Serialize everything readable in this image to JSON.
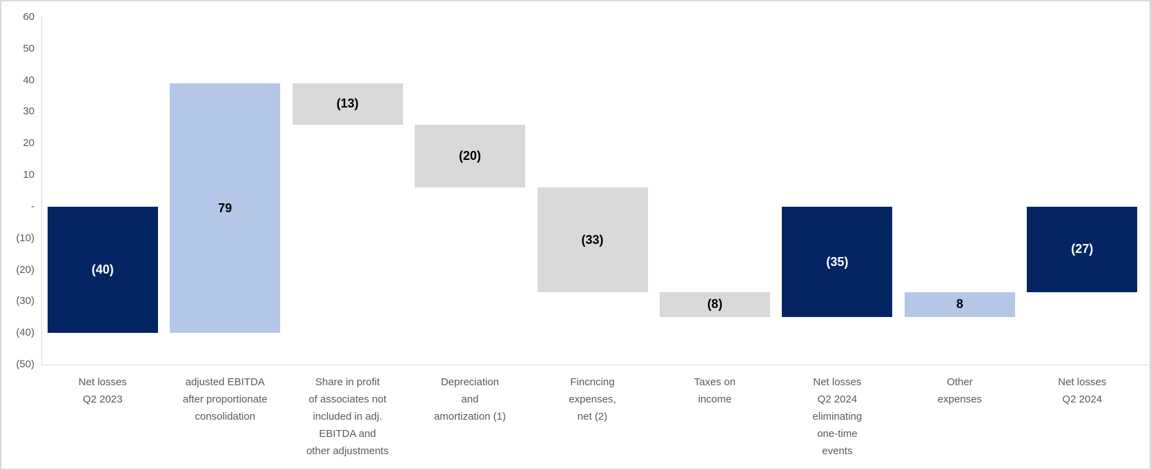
{
  "chart_data": {
    "type": "bar",
    "subtype": "waterfall",
    "title": "",
    "xlabel": "",
    "ylabel": "",
    "ylim": [
      -50,
      60
    ],
    "ytick_values": [
      60,
      50,
      40,
      30,
      20,
      10,
      0,
      -10,
      -20,
      -30,
      -40,
      -50
    ],
    "ytick_labels": [
      "60",
      "50",
      "40",
      "30",
      "20",
      "10",
      "-",
      "(10)",
      "(20)",
      "(30)",
      "(40)",
      "(50)"
    ],
    "grid": "off",
    "legend": "none",
    "bars": [
      {
        "category": "Net losses Q2 2023",
        "category_lines": [
          "Net losses",
          "Q2 2023"
        ],
        "value": -40,
        "display": "(40)",
        "start": 0,
        "end": -40,
        "kind": "total"
      },
      {
        "category": "adjusted EBITDA after proportionate consolidation",
        "category_lines": [
          "adjusted EBITDA",
          "after proportionate",
          "consolidation"
        ],
        "value": 79,
        "display": "79",
        "start": -40,
        "end": 39,
        "kind": "increase"
      },
      {
        "category": "Share in profit of associates not included in adj. EBITDA and other adjustments",
        "category_lines": [
          "Share in profit",
          "of associates not",
          "included in adj.",
          "EBITDA and",
          "other adjustments"
        ],
        "value": -13,
        "display": "(13)",
        "start": 39,
        "end": 26,
        "kind": "decrease"
      },
      {
        "category": "Depreciation and amortization (1)",
        "category_lines": [
          "Depreciation",
          "and",
          "amortization (1)"
        ],
        "value": -20,
        "display": "(20)",
        "start": 26,
        "end": 6,
        "kind": "decrease"
      },
      {
        "category": "Fincncing expenses, net (2)",
        "category_lines": [
          "Fincncing",
          "expenses,",
          "net (2)"
        ],
        "value": -33,
        "display": "(33)",
        "start": 6,
        "end": -27,
        "kind": "decrease"
      },
      {
        "category": "Taxes on income",
        "category_lines": [
          "Taxes on",
          "income"
        ],
        "value": -8,
        "display": "(8)",
        "start": -27,
        "end": -35,
        "kind": "decrease"
      },
      {
        "category": "Net losses Q2 2024 eliminating one-time events",
        "category_lines": [
          "Net losses",
          "Q2 2024",
          "eliminating",
          "one-time",
          "events"
        ],
        "value": -35,
        "display": "(35)",
        "start": 0,
        "end": -35,
        "kind": "total"
      },
      {
        "category": "Other expenses",
        "category_lines": [
          "Other",
          "expenses"
        ],
        "value": 8,
        "display": "8",
        "start": -35,
        "end": -27,
        "kind": "increase"
      },
      {
        "category": "Net losses Q2 2024",
        "category_lines": [
          "Net losses",
          "Q2 2024"
        ],
        "value": -27,
        "display": "(27)",
        "start": 0,
        "end": -27,
        "kind": "total"
      }
    ],
    "colors": {
      "total": "#032564",
      "increase": "#b4c7e7",
      "decrease": "#d9d9d9",
      "label_on_total": "#ffffff",
      "label_on_light": "#000000",
      "axis_text": "#595959",
      "axis_line": "#d9d9d9",
      "frame_border": "#d9d9d9",
      "background": "#ffffff"
    }
  }
}
